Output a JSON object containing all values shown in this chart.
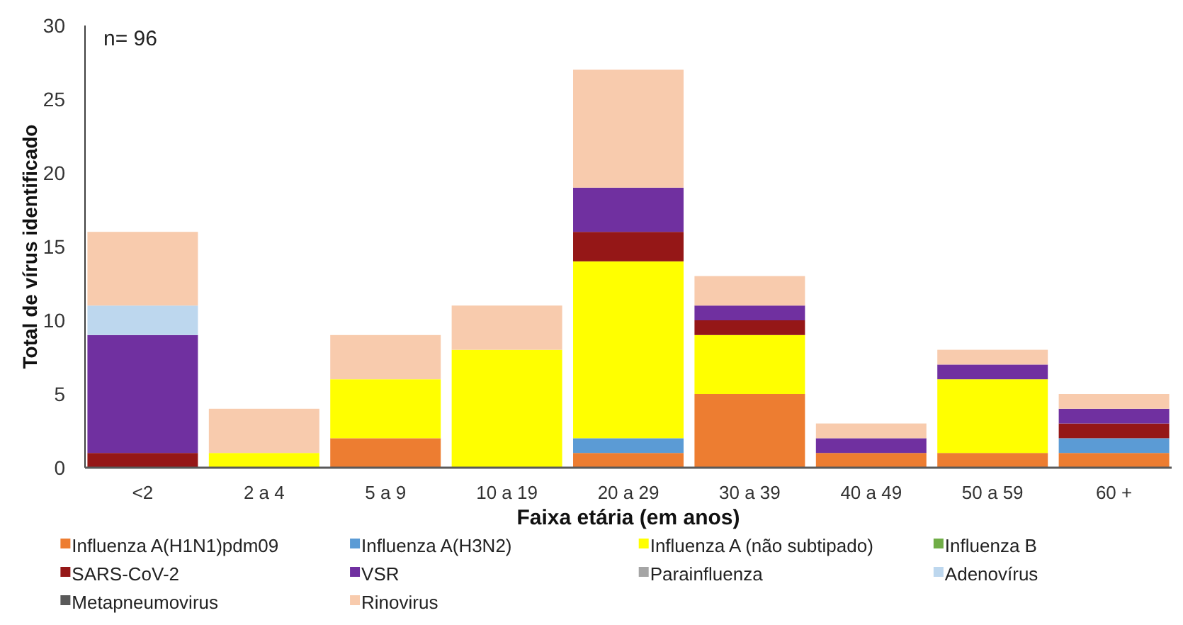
{
  "chart_data": {
    "type": "bar",
    "stacked": true,
    "xlabel": "Faixa etária (em anos)",
    "ylabel": "Total de vírus identificado",
    "annotations": [
      "n= 96"
    ],
    "categories": [
      "<2",
      "2 a 4",
      "5 a 9",
      "10 a 19",
      "20 a 29",
      "30 a 39",
      "40 a 49",
      "50 a 59",
      "60 +"
    ],
    "series": [
      {
        "name": "Influenza A(H1N1)pdm09",
        "color": "#ed7d31",
        "values": [
          0,
          0,
          2,
          0,
          1,
          5,
          1,
          1,
          1
        ]
      },
      {
        "name": "Influenza A(H3N2)",
        "color": "#5b9bd5",
        "values": [
          0,
          0,
          0,
          0,
          1,
          0,
          0,
          0,
          1
        ]
      },
      {
        "name": "Influenza A (não subtipado)",
        "color": "#ffff00",
        "values": [
          0,
          1,
          4,
          8,
          12,
          4,
          0,
          5,
          0
        ]
      },
      {
        "name": "Influenza B",
        "color": "#70ad47",
        "values": [
          0,
          0,
          0,
          0,
          0,
          0,
          0,
          0,
          0
        ]
      },
      {
        "name": "SARS-CoV-2",
        "color": "#951717",
        "values": [
          1,
          0,
          0,
          0,
          2,
          1,
          0,
          0,
          1
        ]
      },
      {
        "name": "VSR",
        "color": "#7030a0",
        "values": [
          8,
          0,
          0,
          0,
          3,
          1,
          1,
          1,
          1
        ]
      },
      {
        "name": "Parainfluenza",
        "color": "#a5a5a5",
        "values": [
          0,
          0,
          0,
          0,
          0,
          0,
          0,
          0,
          0
        ]
      },
      {
        "name": "Adenovírus",
        "color": "#bdd7ee",
        "values": [
          2,
          0,
          0,
          0,
          0,
          0,
          0,
          0,
          0
        ]
      },
      {
        "name": "Metapneumovirus",
        "color": "#595959",
        "values": [
          0,
          0,
          0,
          0,
          0,
          0,
          0,
          0,
          0
        ]
      },
      {
        "name": "Rinovirus",
        "color": "#f8cbad",
        "values": [
          5,
          3,
          3,
          3,
          8,
          2,
          1,
          1,
          1
        ]
      }
    ],
    "ylim": [
      0,
      30
    ],
    "yticks": [
      0,
      5,
      10,
      15,
      20,
      25,
      30
    ],
    "grid": false,
    "legend": "bottom"
  }
}
